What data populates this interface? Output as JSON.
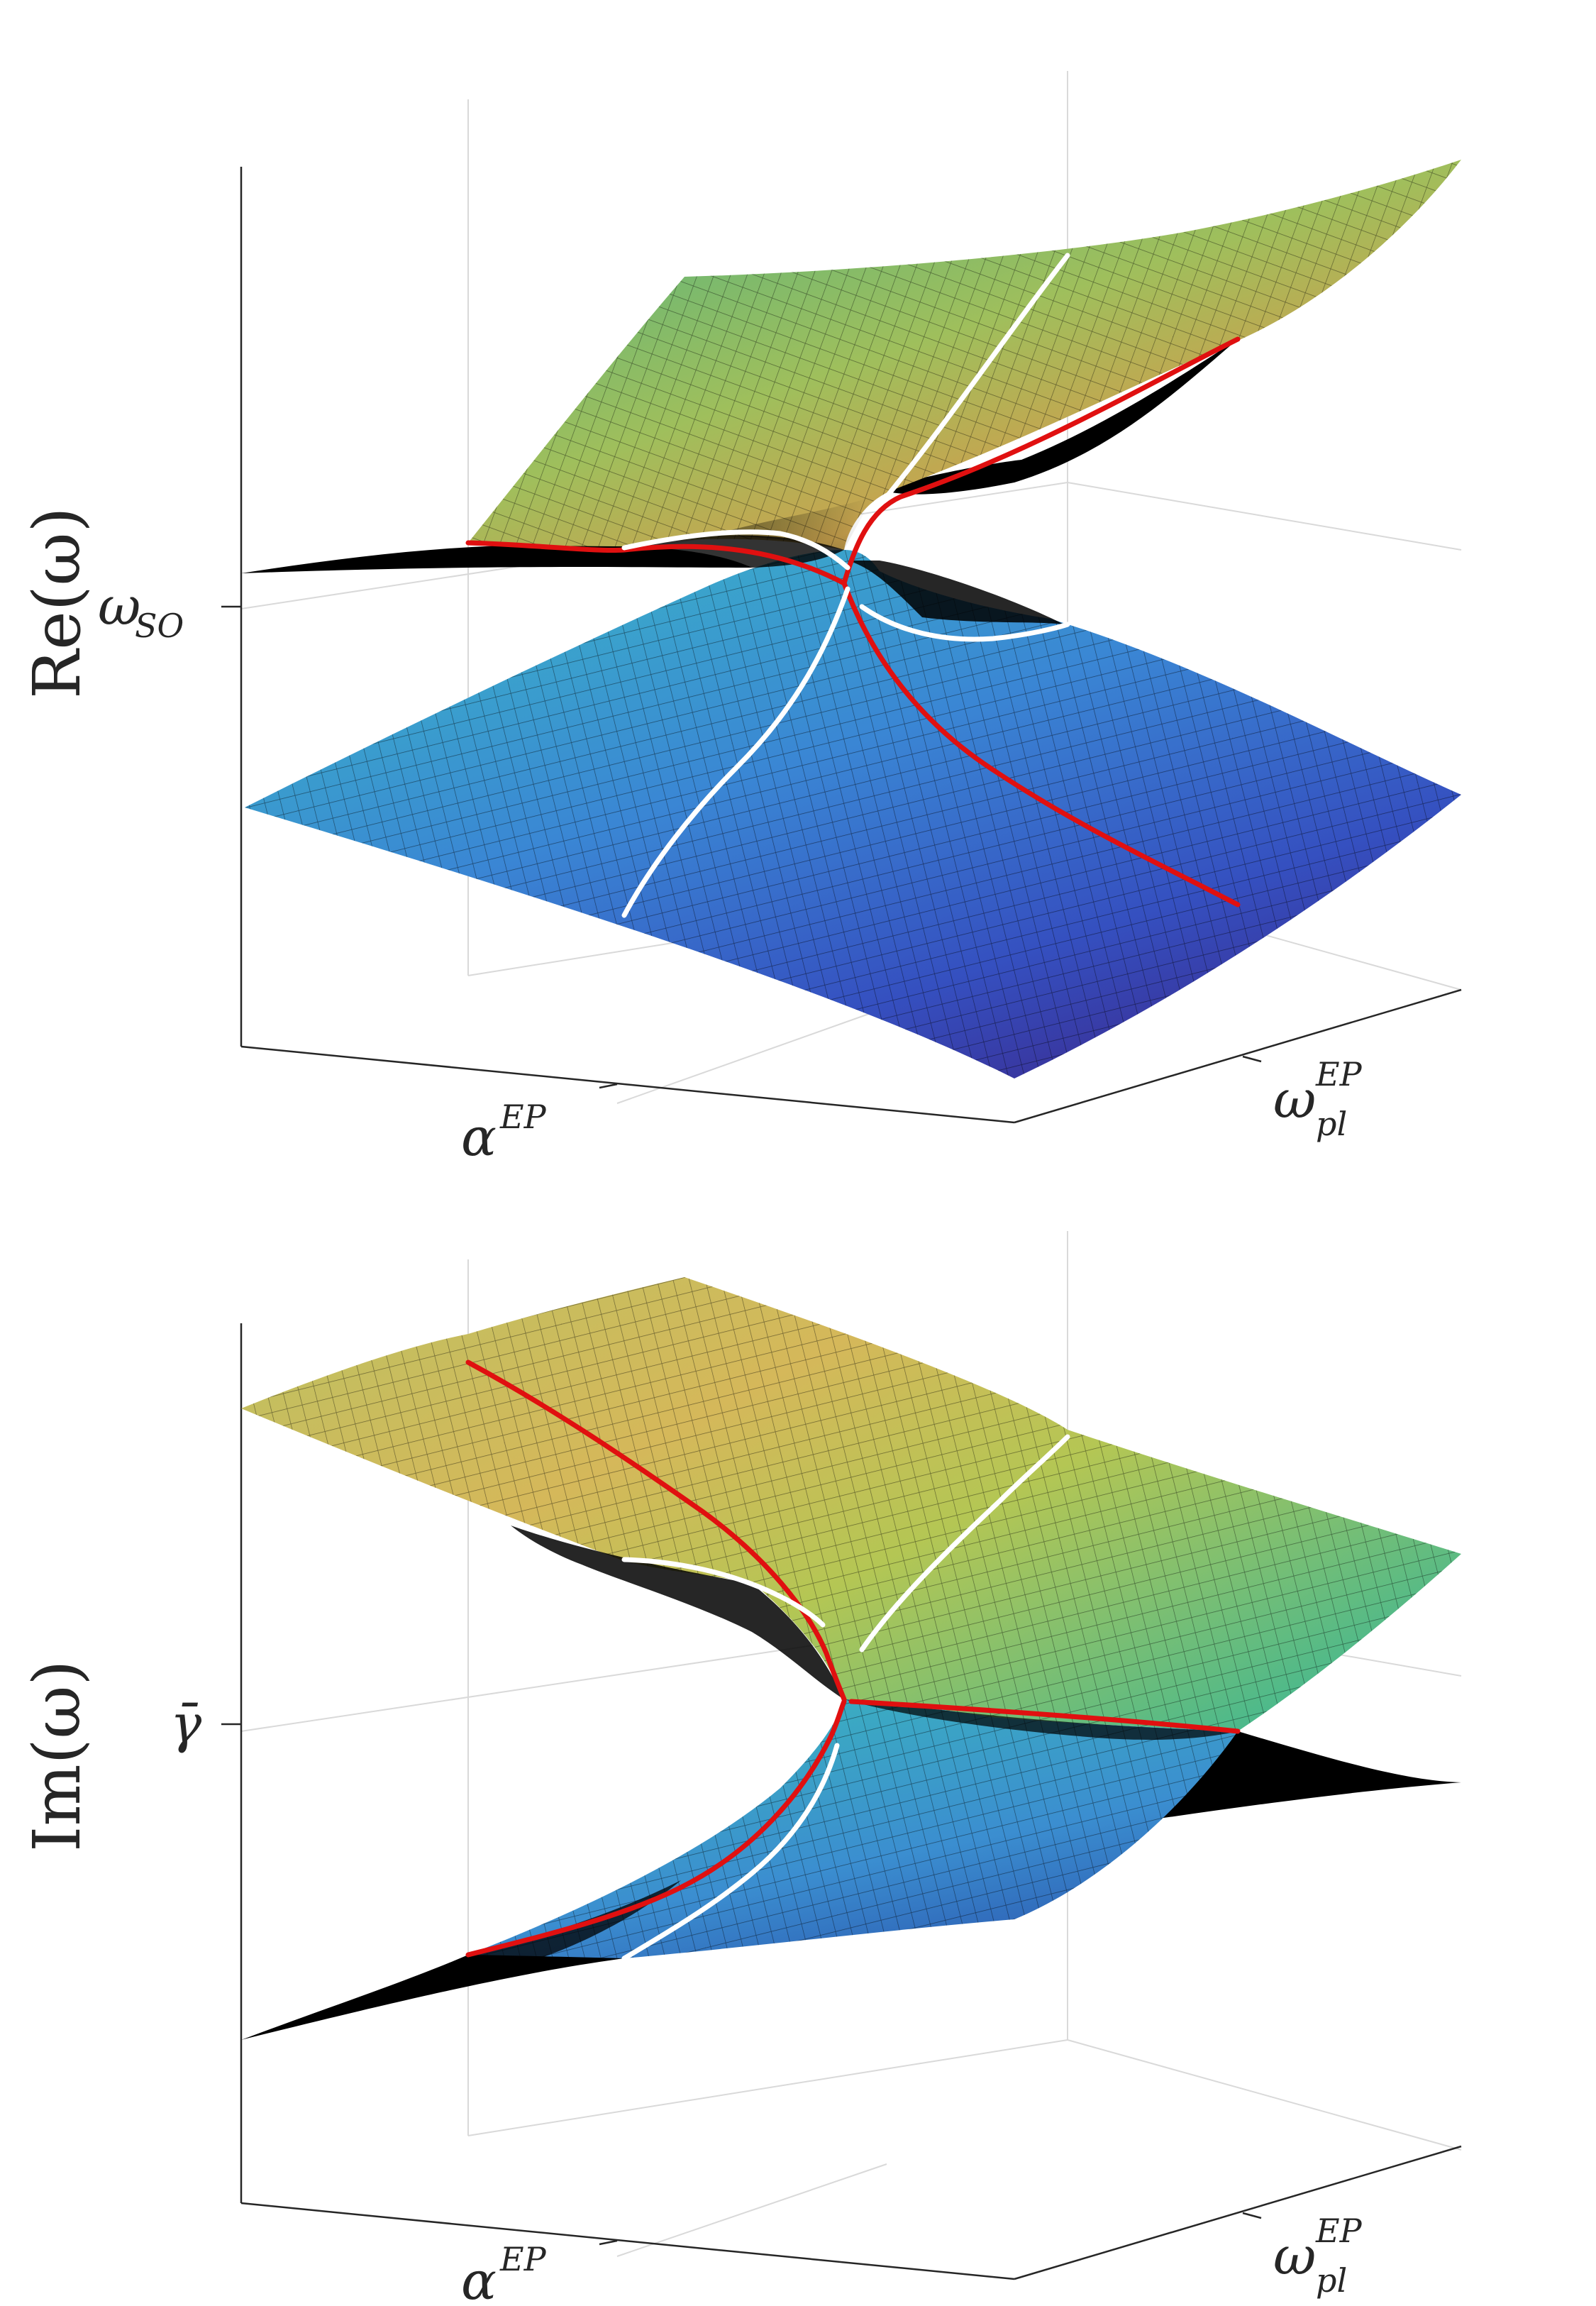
{
  "chart_data": [
    {
      "type": "surface3d",
      "ylabel": "Re(ω)",
      "ztick": {
        "symbol": "ω",
        "sub": "SO"
      },
      "xtick": {
        "symbol": "α",
        "sup": "EP"
      },
      "ytick": {
        "symbol": "ω",
        "sub": "pl",
        "sup": "EP"
      },
      "surfaces": [
        "upper sheet",
        "lower sheet"
      ],
      "curves": {
        "red": "exceptional-point line",
        "white": "diabolic crossing line"
      },
      "grid": true
    },
    {
      "type": "surface3d",
      "ylabel": "Im(ω)",
      "ztick": {
        "symbol": "γ̄",
        "sub": ""
      },
      "xtick": {
        "symbol": "α",
        "sup": "EP"
      },
      "ytick": {
        "symbol": "ω",
        "sub": "pl",
        "sup": "EP"
      },
      "surfaces": [
        "upper sheet",
        "lower sheet"
      ],
      "curves": {
        "red": "exceptional-point line",
        "white": "diabolic crossing line"
      },
      "grid": true
    }
  ],
  "colors": {
    "yellow": "#d8d058",
    "green": "#56b88a",
    "cyan": "#38b4c8",
    "blue": "#3a70d0",
    "indigo": "#3b2c9a",
    "red": "#e01010",
    "white": "#ffffff",
    "black": "#000000"
  }
}
